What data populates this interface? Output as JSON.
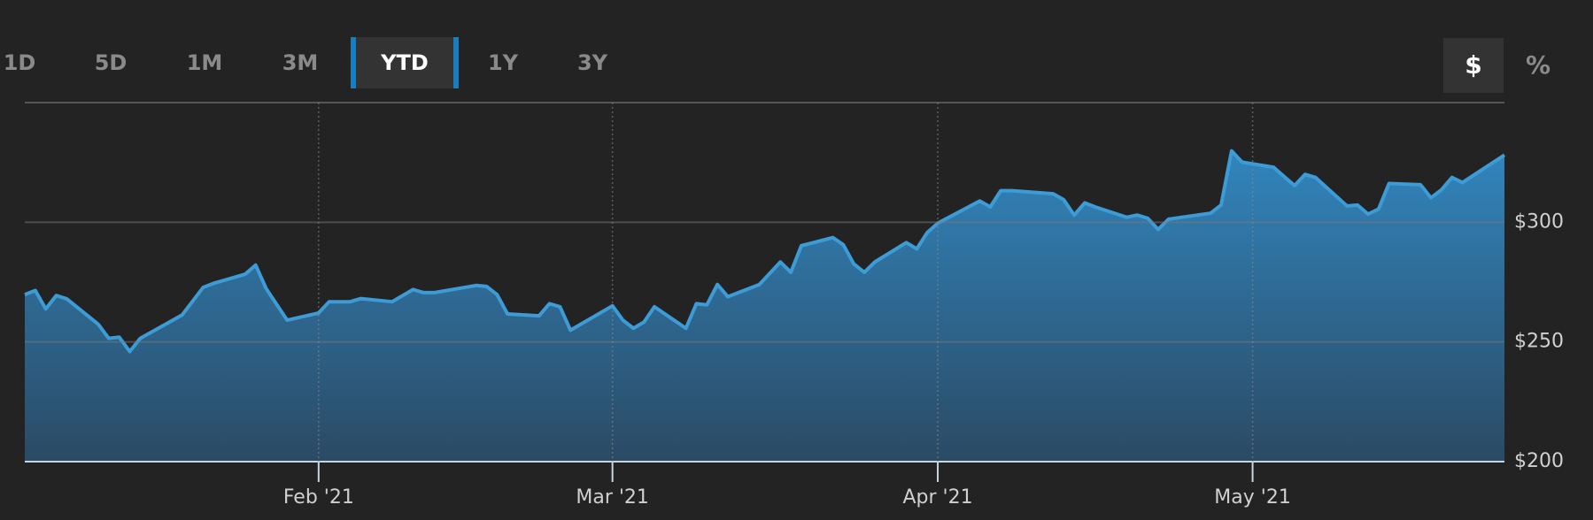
{
  "toolbar": {
    "ranges": [
      "1D",
      "5D",
      "1M",
      "3M",
      "YTD",
      "1Y",
      "3Y"
    ],
    "units": [
      "$",
      "%"
    ]
  },
  "chart_data": {
    "type": "area",
    "x": [
      4,
      5,
      6,
      7,
      8,
      11,
      12,
      13,
      14,
      15,
      19,
      21,
      22,
      25,
      26,
      27,
      29,
      32,
      33,
      35,
      36,
      39,
      41,
      42,
      43,
      47,
      48,
      49,
      50,
      53,
      54,
      55,
      56,
      60,
      61,
      62,
      63,
      64,
      67,
      68,
      69,
      70,
      71,
      74,
      76,
      77,
      78,
      81,
      82,
      83,
      84,
      85,
      88,
      89,
      90,
      91,
      95,
      96,
      97,
      98,
      102,
      103,
      104,
      105,
      106,
      109,
      110,
      111,
      112,
      113,
      117,
      118,
      119,
      120,
      123,
      124,
      125,
      126,
      127,
      130,
      131,
      132,
      133,
      134,
      137,
      138,
      139,
      140,
      141,
      145
    ],
    "series": [
      {
        "color": "#3d9bd6",
        "values": [
          269.8,
          271.5,
          263.8,
          269.4,
          268,
          257.4,
          251.5,
          252,
          246,
          251.5,
          261.3,
          272.8,
          274.5,
          278.3,
          282.1,
          272.3,
          259.1,
          262.1,
          266.8,
          266.8,
          268.1,
          266.8,
          271.9,
          270.6,
          270.6,
          273.6,
          273.2,
          269.8,
          261.7,
          260.9,
          266,
          264.7,
          254.9,
          265.1,
          259.1,
          255.7,
          258.3,
          264.7,
          255.7,
          266,
          265.5,
          274,
          268.9,
          274,
          283.4,
          279.1,
          290.2,
          293.6,
          290.6,
          282.6,
          279.1,
          283.4,
          291.5,
          288.9,
          295.7,
          299.6,
          308.9,
          306.4,
          313.2,
          313.2,
          311.9,
          309.4,
          303,
          308.1,
          306.4,
          302.1,
          303,
          301.7,
          297,
          301.3,
          303.8,
          307.2,
          329.8,
          325.1,
          323,
          319.1,
          315.3,
          320,
          318.7,
          306.8,
          307.2,
          303.4,
          305.5,
          316.2,
          315.7,
          310.2,
          313.6,
          318.7,
          316.6,
          328.1
        ]
      }
    ],
    "xlim": [
      4,
      145
    ],
    "xticks": [
      {
        "value": 32,
        "label": "Feb '21"
      },
      {
        "value": 60,
        "label": "Mar '21"
      },
      {
        "value": 91,
        "label": "Apr '21"
      },
      {
        "value": 121,
        "label": "May '21"
      }
    ],
    "ylim": [
      200,
      350
    ],
    "yticks": [
      {
        "value": 200,
        "label": "$200"
      },
      {
        "value": 250,
        "label": "$250"
      },
      {
        "value": 300,
        "label": "$300"
      }
    ],
    "grid": true
  }
}
